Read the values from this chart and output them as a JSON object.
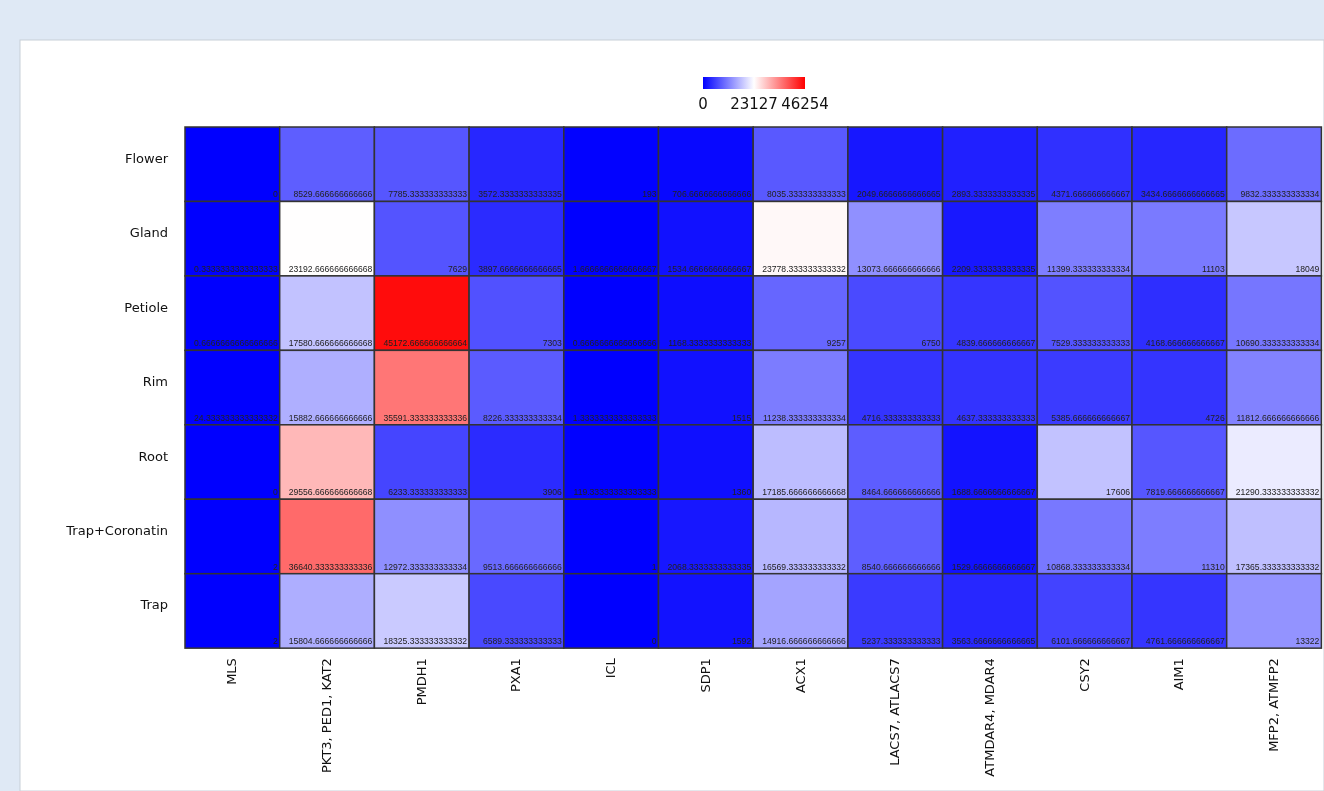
{
  "chart_data": {
    "type": "heatmap",
    "categories": [
      "MLS",
      "PKT3, PED1, KAT2",
      "PMDH1",
      "PXA1",
      "ICL",
      "SDP1",
      "ACX1",
      "LACS7, ATLACS7",
      "ATMDAR4, MDAR4",
      "CSY2",
      "AIM1",
      "MFP2, ATMFP2"
    ],
    "y_categories": [
      "Flower",
      "Gland",
      "Petiole",
      "Rim",
      "Root",
      "Trap+Coronatin",
      "Trap"
    ],
    "cells": [
      [
        0,
        8529.666666666666,
        7785.333333333333,
        3572.3333333333335,
        193,
        706.6666666666666,
        8035.333333333333,
        2049.6666666666665,
        2893.3333333333335,
        4371.666666666667,
        3434.6666666666665,
        9832.333333333334
      ],
      [
        0.3333333333333333,
        23192.666666666668,
        7629,
        3897.6666666666665,
        1.6666666666666667,
        1534.6666666666667,
        23778.333333333332,
        13073.666666666666,
        2209.3333333333335,
        11399.333333333334,
        11103,
        18049
      ],
      [
        0.6666666666666666,
        17580.666666666668,
        45172.666666666664,
        7303,
        0.6666666666666666,
        1168.3333333333333,
        9257,
        6750,
        4839.666666666667,
        7529.333333333333,
        4168.666666666667,
        10690.333333333334
      ],
      [
        24.333333333333332,
        15882.666666666666,
        35591.333333333336,
        8226.333333333334,
        1.3333333333333333,
        1515,
        11238.333333333334,
        4716.333333333333,
        4637.333333333333,
        5385.666666666667,
        4726,
        11812.666666666666
      ],
      [
        0,
        29556.666666666668,
        6233.333333333333,
        3906,
        119.33333333333333,
        1360,
        17185.666666666668,
        8464.666666666666,
        1688.6666666666667,
        17606,
        7819.666666666667,
        21290.333333333332
      ],
      [
        2,
        36640.333333333336,
        12972.333333333334,
        9513.666666666666,
        1,
        2068.3333333333335,
        16569.333333333332,
        8540.666666666666,
        1529.6666666666667,
        10868.333333333334,
        11310,
        17365.333333333332
      ],
      [
        2,
        15804.666666666666,
        18325.333333333332,
        6589.333333333333,
        0,
        1592,
        14916.666666666666,
        5237.333333333333,
        3563.6666666666665,
        6101.666666666667,
        4761.666666666667,
        13322
      ]
    ],
    "clim": [
      0,
      46254
    ],
    "cticks": [
      0,
      23127,
      46254
    ],
    "data_labels": true
  }
}
